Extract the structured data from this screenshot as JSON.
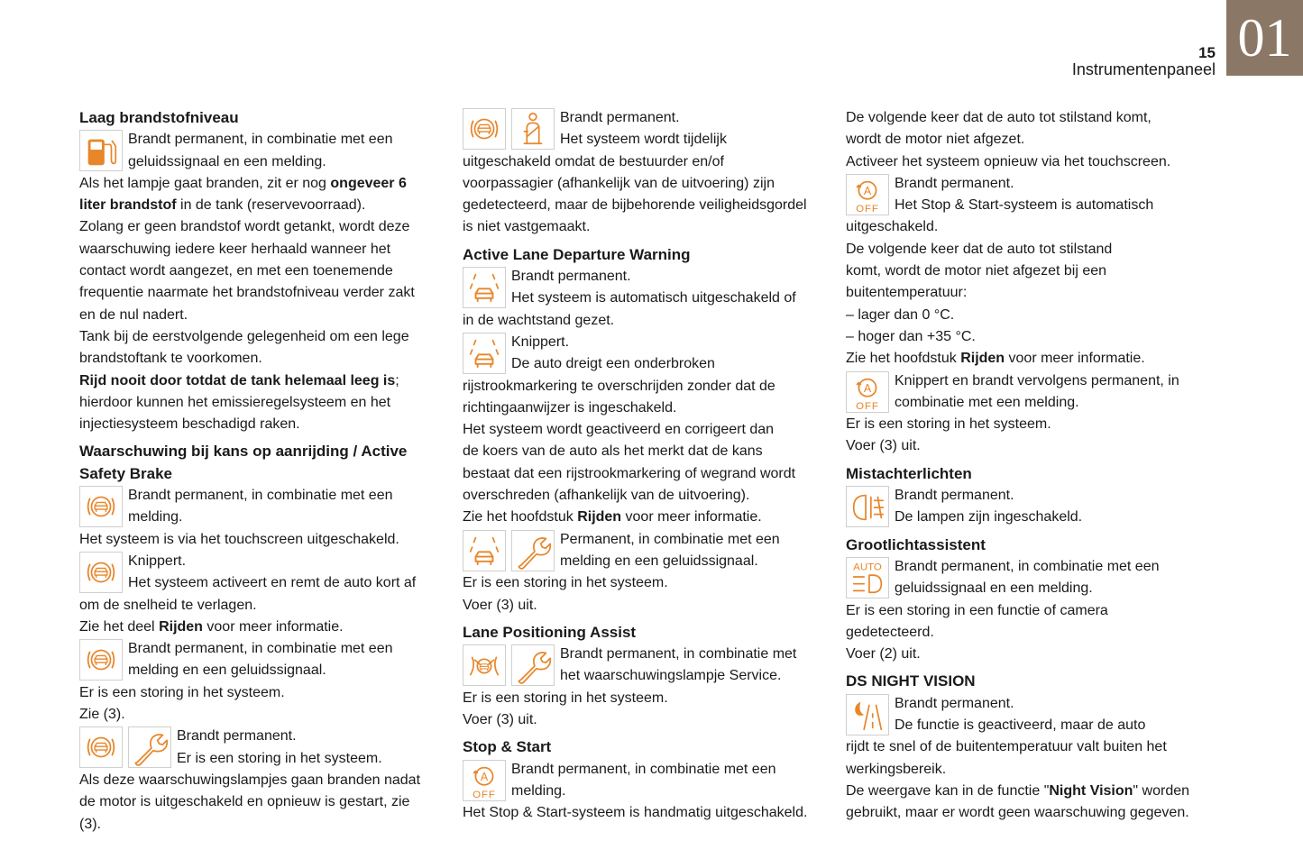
{
  "header": {
    "page_number": "15",
    "section_title": "Instrumentenpaneel",
    "chapter": "01"
  },
  "colors": {
    "icon": "#e8862a",
    "chapter_box": "#8b7765"
  },
  "columns": [
    [
      {
        "heading": [
          "Laag brandstofniveau"
        ]
      },
      {
        "icons": [
          "fuel-icon"
        ],
        "lines": [
          "Brandt permanent, in combinatie met een",
          "geluidssignaal en een melding.",
          [
            {
              "t": "Als het lampje gaat branden, zit er nog "
            },
            {
              "t": "ongeveer 6",
              "b": true
            }
          ],
          [
            {
              "t": "liter brandstof",
              "b": true
            },
            {
              "t": " in de tank (reservevoorraad)."
            }
          ],
          "Zolang er geen brandstof wordt getankt, wordt deze",
          "waarschuwing iedere keer herhaald wanneer het",
          "contact wordt aangezet, en met een toenemende",
          "frequentie naarmate het brandstofniveau verder zakt",
          "en de nul nadert.",
          "Tank bij de eerstvolgende gelegenheid om een lege",
          "brandstoftank te voorkomen.",
          [
            {
              "t": "Rijd nooit door totdat de tank helemaal leeg is",
              "b": true
            },
            {
              "t": ";"
            }
          ],
          "hierdoor kunnen het emissieregelsysteem en het",
          "injectiesysteem beschadigd raken."
        ]
      },
      {
        "heading": [
          "Waarschuwing bij kans op aanrijding / Active",
          "Safety Brake"
        ]
      },
      {
        "icons": [
          "collision-brake-icon"
        ],
        "lines": [
          "Brandt permanent, in combinatie met een",
          "melding.",
          "Het systeem is via het touchscreen uitgeschakeld."
        ]
      },
      {
        "icons": [
          "collision-brake-icon"
        ],
        "lines": [
          "Knippert.",
          "Het systeem activeert en remt de auto kort af",
          "om de snelheid te verlagen.",
          [
            {
              "t": "Zie het deel "
            },
            {
              "t": "Rijden",
              "b": true
            },
            {
              "t": " voor meer informatie."
            }
          ]
        ]
      },
      {
        "icons": [
          "collision-brake-icon"
        ],
        "lines": [
          "Brandt permanent, in combinatie met een",
          "melding en een geluidssignaal.",
          "Er is een storing in het systeem.",
          "Zie (3)."
        ]
      },
      {
        "icons": [
          "collision-brake-icon",
          "wrench-icon"
        ],
        "lines": [
          "Brandt permanent.",
          "Er is een storing in het systeem.",
          "Als deze waarschuwingslampjes gaan branden nadat",
          "de motor is uitgeschakeld en opnieuw is gestart, zie",
          "(3)."
        ]
      }
    ],
    [
      {
        "icons": [
          "collision-brake-icon",
          "seatbelt-icon"
        ],
        "lines": [
          "Brandt permanent.",
          "Het systeem wordt tijdelijk",
          "uitgeschakeld omdat de bestuurder en/of",
          "voorpassagier (afhankelijk van de uitvoering) zijn",
          "gedetecteerd, maar de bijbehorende veiligheidsgordel",
          "is niet vastgemaakt."
        ]
      },
      {
        "heading": [
          "Active Lane Departure Warning"
        ]
      },
      {
        "icons": [
          "lane-departure-icon"
        ],
        "lines": [
          "Brandt permanent.",
          "Het systeem is automatisch uitgeschakeld of",
          "in de wachtstand gezet."
        ]
      },
      {
        "icons": [
          "lane-departure-icon"
        ],
        "lines": [
          "Knippert.",
          "De auto dreigt een onderbroken",
          "rijstrookmarkering te overschrijden zonder dat de",
          "richtingaanwijzer is ingeschakeld.",
          "Het systeem wordt geactiveerd en corrigeert dan",
          "de koers van de auto als het merkt dat de kans",
          "bestaat dat een rijstrookmarkering of wegrand wordt",
          "overschreden (afhankelijk van de uitvoering).",
          [
            {
              "t": "Zie het hoofdstuk "
            },
            {
              "t": "Rijden",
              "b": true
            },
            {
              "t": " voor meer informatie."
            }
          ]
        ]
      },
      {
        "icons": [
          "lane-departure-icon",
          "wrench-icon"
        ],
        "lines": [
          "Permanent, in combinatie met een",
          "melding en een geluidssignaal.",
          "Er is een storing in het systeem.",
          "Voer (3) uit."
        ]
      },
      {
        "heading": [
          "Lane Positioning Assist"
        ]
      },
      {
        "icons": [
          "lane-positioning-icon",
          "wrench-icon"
        ],
        "lines": [
          "Brandt permanent, in combinatie met",
          "het waarschuwingslampje Service.",
          "Er is een storing in het systeem.",
          "Voer (3) uit."
        ]
      },
      {
        "heading": [
          "Stop & Start"
        ]
      },
      {
        "icons": [
          "stop-start-off-icon"
        ],
        "lines": [
          "Brandt permanent, in combinatie met een",
          "melding.",
          "Het Stop & Start-systeem is handmatig uitgeschakeld."
        ]
      }
    ],
    [
      {
        "lines": [
          "De volgende keer dat de auto tot stilstand komt,",
          "wordt de motor niet afgezet.",
          "Activeer het systeem opnieuw via het touchscreen."
        ]
      },
      {
        "icons": [
          "stop-start-off-icon"
        ],
        "lines": [
          "Brandt permanent.",
          "Het Stop & Start-systeem is automatisch",
          "uitgeschakeld.",
          "De volgende keer dat de auto tot stilstand",
          "komt, wordt de motor niet afgezet bij een",
          "buitentemperatuur:",
          "–  lager dan 0 °C.",
          "–  hoger dan +35 °C.",
          [
            {
              "t": "Zie het hoofdstuk "
            },
            {
              "t": "Rijden",
              "b": true
            },
            {
              "t": " voor meer informatie."
            }
          ]
        ]
      },
      {
        "icons": [
          "stop-start-off-icon"
        ],
        "lines": [
          "Knippert en brandt vervolgens permanent, in",
          "combinatie met een melding.",
          "Er is een storing in het systeem.",
          "Voer (3) uit."
        ]
      },
      {
        "heading": [
          "Mistachterlichten"
        ]
      },
      {
        "icons": [
          "rear-fog-light-icon"
        ],
        "lines": [
          "Brandt permanent.",
          "De lampen zijn ingeschakeld."
        ]
      },
      {
        "heading": [
          "Grootlichtassistent"
        ]
      },
      {
        "icons": [
          "auto-high-beam-icon"
        ],
        "lines": [
          "Brandt permanent, in combinatie met een",
          "geluidssignaal en een melding.",
          "Er is een storing in een functie of camera",
          "gedetecteerd.",
          "Voer (2) uit."
        ]
      },
      {
        "heading": [
          "DS NIGHT VISION"
        ]
      },
      {
        "icons": [
          "night-vision-icon"
        ],
        "lines": [
          "Brandt permanent.",
          "De functie is geactiveerd, maar de auto",
          "rijdt te snel of de buitentemperatuur valt buiten het",
          "werkingsbereik.",
          [
            {
              "t": "De weergave kan in de functie \""
            },
            {
              "t": "Night Vision",
              "b": true
            },
            {
              "t": "\" worden"
            }
          ],
          "gebruikt, maar er wordt geen waarschuwing gegeven."
        ]
      }
    ]
  ],
  "icon_text": {
    "auto": "AUTO",
    "off": "OFF",
    "a": "A"
  }
}
